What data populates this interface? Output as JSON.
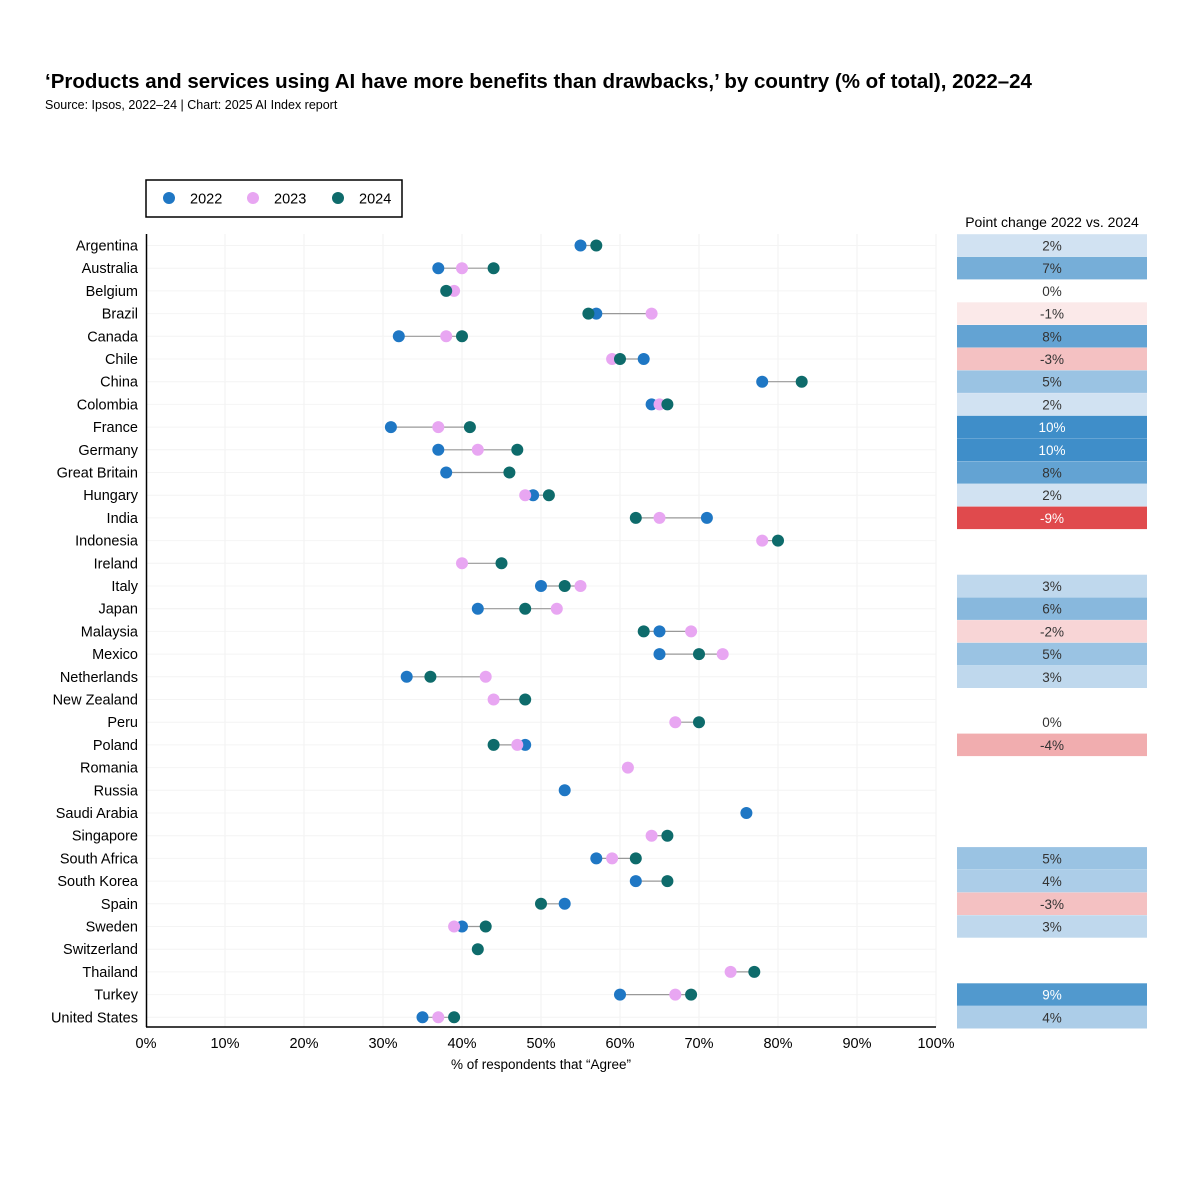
{
  "title": "‘Products and services using AI have more benefits than drawbacks,’ by country (% of total), 2022–24",
  "subtitle": "Source: Ipsos, 2022–24 | Chart: 2025 AI Index report",
  "chart_data": {
    "type": "dumbbell",
    "title": "‘Products and services using AI have more benefits than drawbacks,’ by country (% of total), 2022–24",
    "xlabel": "% of respondents that “Agree”",
    "ylabel": "",
    "xlim": [
      0,
      100
    ],
    "x_ticks": [
      "0%",
      "10%",
      "20%",
      "30%",
      "40%",
      "50%",
      "60%",
      "70%",
      "80%",
      "90%",
      "100%"
    ],
    "grid": true,
    "legend": {
      "placement": "top-left",
      "entries": [
        "2022",
        "2023",
        "2024"
      ]
    },
    "colors": {
      "2022": "#1f77c4",
      "2023": "#e8a6f2",
      "2024": "#0e6b6b",
      "connector": "#999999"
    },
    "change_column_title": "Point change 2022 vs. 2024",
    "countries": [
      {
        "name": "Argentina",
        "v2022": 55,
        "v2023": null,
        "v2024": 57,
        "change": 2
      },
      {
        "name": "Australia",
        "v2022": 37,
        "v2023": 40,
        "v2024": 44,
        "change": 7
      },
      {
        "name": "Belgium",
        "v2022": null,
        "v2023": 39,
        "v2024": 38,
        "change": 0
      },
      {
        "name": "Brazil",
        "v2022": 57,
        "v2023": 64,
        "v2024": 56,
        "change": -1
      },
      {
        "name": "Canada",
        "v2022": 32,
        "v2023": 38,
        "v2024": 40,
        "change": 8
      },
      {
        "name": "Chile",
        "v2022": 63,
        "v2023": 59,
        "v2024": 60,
        "change": -3
      },
      {
        "name": "China",
        "v2022": 78,
        "v2023": null,
        "v2024": 83,
        "change": 5
      },
      {
        "name": "Colombia",
        "v2022": 64,
        "v2023": 65,
        "v2024": 66,
        "change": 2
      },
      {
        "name": "France",
        "v2022": 31,
        "v2023": 37,
        "v2024": 41,
        "change": 10
      },
      {
        "name": "Germany",
        "v2022": 37,
        "v2023": 42,
        "v2024": 47,
        "change": 10
      },
      {
        "name": "Great Britain",
        "v2022": 38,
        "v2023": null,
        "v2024": 46,
        "change": 8
      },
      {
        "name": "Hungary",
        "v2022": 49,
        "v2023": 48,
        "v2024": 51,
        "change": 2
      },
      {
        "name": "India",
        "v2022": 71,
        "v2023": 65,
        "v2024": 62,
        "change": -9
      },
      {
        "name": "Indonesia",
        "v2022": null,
        "v2023": 78,
        "v2024": 80,
        "change": null
      },
      {
        "name": "Ireland",
        "v2022": null,
        "v2023": 40,
        "v2024": 45,
        "change": null
      },
      {
        "name": "Italy",
        "v2022": 50,
        "v2023": 55,
        "v2024": 53,
        "change": 3
      },
      {
        "name": "Japan",
        "v2022": 42,
        "v2023": 52,
        "v2024": 48,
        "change": 6
      },
      {
        "name": "Malaysia",
        "v2022": 65,
        "v2023": 69,
        "v2024": 63,
        "change": -2
      },
      {
        "name": "Mexico",
        "v2022": 65,
        "v2023": 73,
        "v2024": 70,
        "change": 5
      },
      {
        "name": "Netherlands",
        "v2022": 33,
        "v2023": 43,
        "v2024": 36,
        "change": 3
      },
      {
        "name": "New Zealand",
        "v2022": null,
        "v2023": 44,
        "v2024": 48,
        "change": null
      },
      {
        "name": "Peru",
        "v2022": null,
        "v2023": 67,
        "v2024": 70,
        "change": 0
      },
      {
        "name": "Poland",
        "v2022": 48,
        "v2023": 47,
        "v2024": 44,
        "change": -4
      },
      {
        "name": "Romania",
        "v2022": null,
        "v2023": 61,
        "v2024": null,
        "change": null
      },
      {
        "name": "Russia",
        "v2022": 53,
        "v2023": null,
        "v2024": null,
        "change": null
      },
      {
        "name": "Saudi Arabia",
        "v2022": 76,
        "v2023": null,
        "v2024": null,
        "change": null
      },
      {
        "name": "Singapore",
        "v2022": null,
        "v2023": 64,
        "v2024": 66,
        "change": null
      },
      {
        "name": "South Africa",
        "v2022": 57,
        "v2023": 59,
        "v2024": 62,
        "change": 5
      },
      {
        "name": "South Korea",
        "v2022": 62,
        "v2023": null,
        "v2024": 66,
        "change": 4
      },
      {
        "name": "Spain",
        "v2022": 53,
        "v2023": null,
        "v2024": 50,
        "change": -3
      },
      {
        "name": "Sweden",
        "v2022": 40,
        "v2023": 39,
        "v2024": 43,
        "change": 3
      },
      {
        "name": "Switzerland",
        "v2022": null,
        "v2023": null,
        "v2024": 42,
        "change": null
      },
      {
        "name": "Thailand",
        "v2022": null,
        "v2023": 74,
        "v2024": 77,
        "change": null
      },
      {
        "name": "Turkey",
        "v2022": 60,
        "v2023": 67,
        "v2024": 69,
        "change": 9
      },
      {
        "name": "United States",
        "v2022": 35,
        "v2023": 37,
        "v2024": 39,
        "change": 4
      }
    ]
  }
}
